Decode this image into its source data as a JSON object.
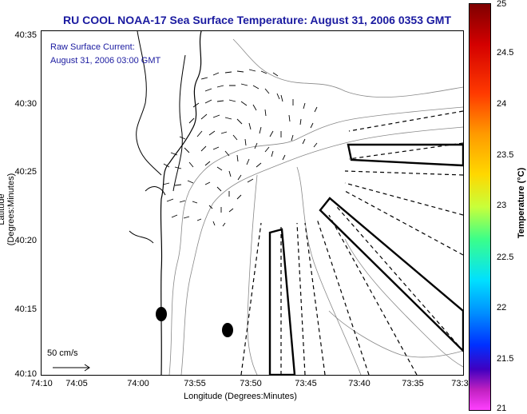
{
  "title": "RU COOL  NOAA-17  Sea Surface Temperature:  August 31, 2006 0353 GMT",
  "annotation_line1": "Raw Surface Current:",
  "annotation_line2": "August 31, 2006 03:00 GMT",
  "scale_label": "50 cm/s",
  "xlabel": "Longitude (Degrees:Minutes)",
  "ylabel": "Latitude (Degrees:Minutes)",
  "colorbar_label": "Temperature (°C)",
  "yticks": [
    "40:35",
    "40:30",
    "40:25",
    "40:20",
    "40:15",
    "40:10"
  ],
  "xticks": [
    "74:10",
    "74:05",
    "74:00",
    "73:55",
    "73:50",
    "73:45",
    "73:40",
    "73:35",
    "73:3"
  ],
  "colorbar_ticks": [
    "25",
    "24.5",
    "24",
    "23.5",
    "23",
    "22.5",
    "22",
    "21.5",
    "21"
  ],
  "colors": {
    "title": "#1a1aa0",
    "contour": "#888888"
  }
}
